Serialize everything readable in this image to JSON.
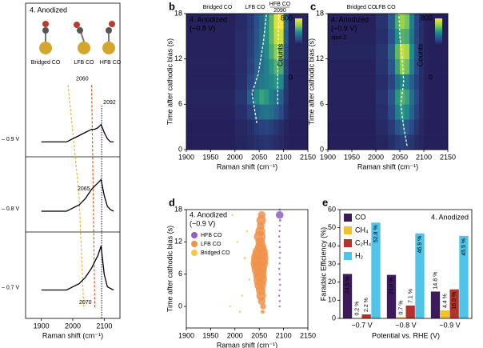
{
  "chart_data": [
    {
      "type": "line",
      "label": "a",
      "title": "4. Anodized",
      "molecules": [
        "Bridged CO",
        "LFB CO",
        "HFB CO"
      ],
      "xlabel": "Raman shift (cm⁻¹)",
      "xlim": [
        1850,
        2150
      ],
      "xticks": [
        1900,
        2000,
        2100
      ],
      "ylim": [
        0,
        10
      ],
      "x": [
        1900,
        1910,
        1920,
        1930,
        1940,
        1950,
        1960,
        1970,
        1980,
        1990,
        2000,
        2010,
        2020,
        2030,
        2040,
        2050,
        2060,
        2070,
        2080,
        2090,
        2100,
        2110,
        2120,
        2130
      ],
      "series": [
        {
          "name": "– 0.9 V",
          "color": "#000000",
          "values": [
            5.6,
            5.6,
            5.6,
            5.6,
            5.6,
            5.6,
            5.6,
            5.6,
            5.6,
            5.65,
            5.7,
            5.75,
            5.8,
            5.85,
            5.9,
            5.95,
            6.0,
            6.0,
            6.05,
            6.15,
            5.9,
            5.7,
            5.6,
            5.6
          ]
        },
        {
          "name": "– 0.8 V",
          "color": "#000000",
          "values": [
            3.4,
            3.4,
            3.4,
            3.4,
            3.4,
            3.4,
            3.4,
            3.4,
            3.4,
            3.45,
            3.5,
            3.55,
            3.6,
            3.7,
            3.8,
            3.95,
            4.1,
            4.2,
            4.3,
            4.4,
            3.9,
            3.55,
            3.45,
            3.4
          ]
        },
        {
          "name": "– 0.7 V",
          "color": "#000000",
          "values": [
            0.9,
            0.9,
            0.9,
            0.9,
            0.9,
            0.9,
            0.9,
            0.9,
            0.9,
            0.95,
            1.0,
            1.05,
            1.1,
            1.2,
            1.3,
            1.45,
            1.6,
            1.8,
            2.0,
            2.3,
            1.4,
            1.0,
            0.95,
            0.9
          ]
        }
      ],
      "guides": [
        {
          "color": "#f5b133",
          "labeled": false,
          "x": [
            1985,
            2020,
            2035
          ],
          "values": [
            7.4,
            3.9,
            0.3
          ]
        },
        {
          "color": "#e0531f",
          "labeled": true,
          "x": [
            2060,
            2065,
            2070
          ],
          "values": [
            7.4,
            3.9,
            0.3
          ]
        }
      ],
      "vlines": [
        {
          "color": "#2b2a8f",
          "x": 2092
        }
      ]
    },
    {
      "type": "heatmap",
      "label": "b",
      "title": "4. Anodized",
      "subtitle": "(−0.8 V)",
      "peaks": [
        "Bridged CO",
        "LFB CO",
        "HFB CO"
      ],
      "annotation": "2090",
      "xlabel": "Raman shift (cm⁻¹)",
      "ylabel": "Time after cathodic bias (s)",
      "xlim": [
        1900,
        2150
      ],
      "xticks": [
        1900,
        1950,
        2000,
        2050,
        2100,
        2150
      ],
      "ylim": [
        0,
        18
      ],
      "yticks": [
        0,
        6,
        12,
        18
      ],
      "colormap": [
        "#241a55",
        "#2a4f8c",
        "#1f8f8a",
        "#8fd14f",
        "#fde725"
      ],
      "colorbar": {
        "label": "Counts",
        "lim": [
          0,
          800
        ],
        "ticks": [
          0,
          800
        ]
      },
      "xbins": [
        1900,
        2000,
        2025,
        2040,
        2050,
        2060,
        2070,
        2080,
        2090,
        2100,
        2110,
        2150
      ],
      "ybins": [
        0,
        2,
        4,
        6,
        8,
        10,
        12,
        14,
        16,
        18
      ],
      "z": [
        [
          20,
          40,
          60,
          80,
          90,
          100,
          90,
          70,
          50,
          30,
          20
        ],
        [
          20,
          50,
          80,
          120,
          150,
          160,
          140,
          110,
          70,
          40,
          20
        ],
        [
          30,
          80,
          150,
          250,
          300,
          320,
          300,
          250,
          180,
          80,
          30
        ],
        [
          40,
          100,
          250,
          380,
          450,
          420,
          350,
          300,
          250,
          100,
          30
        ],
        [
          30,
          80,
          180,
          280,
          330,
          350,
          380,
          420,
          380,
          120,
          30
        ],
        [
          30,
          70,
          150,
          250,
          300,
          350,
          420,
          500,
          480,
          150,
          30
        ],
        [
          30,
          70,
          140,
          230,
          300,
          380,
          480,
          600,
          620,
          200,
          40
        ],
        [
          30,
          70,
          130,
          220,
          300,
          400,
          520,
          700,
          720,
          250,
          40
        ],
        [
          30,
          60,
          120,
          200,
          280,
          380,
          520,
          750,
          800,
          280,
          40
        ]
      ],
      "guides": [
        {
          "color": "#ffffff",
          "x": [
            2045,
            2040,
            2035,
            2048,
            2058,
            2065
          ],
          "values": [
            3.5,
            5.5,
            7.5,
            10,
            14,
            18
          ]
        },
        {
          "color": "#ffffff",
          "x": [
            2088,
            2088,
            2090
          ],
          "values": [
            6,
            12,
            18
          ]
        }
      ]
    },
    {
      "type": "heatmap",
      "label": "c",
      "title": "4. Anodized",
      "subtitle": "(−0.9 V)",
      "note": "spot 2",
      "peaks": [
        "Bridged CO",
        "LFB CO"
      ],
      "xlabel": "Raman shift (cm⁻¹)",
      "ylabel": "Time after cathodic bias (s)",
      "xlim": [
        1900,
        2150
      ],
      "xticks": [
        1900,
        1950,
        2000,
        2050,
        2100,
        2150
      ],
      "ylim": [
        0,
        18
      ],
      "yticks": [
        0,
        6,
        12,
        18
      ],
      "colormap": [
        "#241a55",
        "#2a4f8c",
        "#1f8f8a",
        "#8fd14f",
        "#fde725"
      ],
      "colorbar": {
        "label": "Counts",
        "lim": [
          0,
          800
        ],
        "ticks": [
          0,
          800
        ]
      },
      "xbins": [
        1900,
        2000,
        2025,
        2040,
        2050,
        2060,
        2070,
        2080,
        2090,
        2100,
        2110,
        2150
      ],
      "ybins": [
        0,
        2,
        4,
        6,
        8,
        10,
        12,
        14,
        16,
        18
      ],
      "z": [
        [
          20,
          40,
          80,
          120,
          140,
          130,
          100,
          60,
          40,
          20,
          20
        ],
        [
          20,
          60,
          120,
          220,
          260,
          240,
          180,
          100,
          50,
          20,
          20
        ],
        [
          30,
          80,
          180,
          350,
          420,
          380,
          260,
          150,
          70,
          30,
          20
        ],
        [
          30,
          90,
          220,
          420,
          500,
          450,
          300,
          180,
          80,
          30,
          20
        ],
        [
          30,
          70,
          160,
          300,
          380,
          350,
          250,
          150,
          70,
          30,
          20
        ],
        [
          30,
          90,
          220,
          450,
          600,
          550,
          350,
          180,
          80,
          30,
          20
        ],
        [
          40,
          100,
          260,
          520,
          700,
          650,
          400,
          200,
          80,
          30,
          20
        ],
        [
          30,
          80,
          200,
          400,
          500,
          480,
          320,
          160,
          70,
          30,
          20
        ],
        [
          30,
          90,
          240,
          480,
          620,
          560,
          350,
          170,
          70,
          30,
          20
        ]
      ],
      "guides": [
        {
          "color": "#ffffff",
          "x": [
            2065,
            2058,
            2052,
            2058,
            2055,
            2050,
            2048
          ],
          "values": [
            0.5,
            3,
            6,
            9,
            12,
            15,
            18
          ]
        }
      ]
    },
    {
      "type": "bubble",
      "label": "d",
      "title": "4. Anodized",
      "subtitle": "(−0.9 V)",
      "legend": "upper left",
      "xlabel": "Raman shift (cm⁻¹)",
      "ylabel": "Time after cathodic bias (s)",
      "xlim": [
        1900,
        2150
      ],
      "xticks": [
        1900,
        1950,
        2000,
        2050,
        2100,
        2150
      ],
      "ylim": [
        -4,
        18
      ],
      "yticks": [
        0,
        6,
        12,
        18
      ],
      "series": [
        {
          "name": "HFB CO",
          "color": "#8e5fc9",
          "x": [
            2092,
            2092,
            2091,
            2092,
            2093,
            2092,
            2092,
            2091,
            2092,
            2092,
            2093,
            2092,
            2092,
            2091,
            2092,
            2092,
            2093,
            2092,
            2092
          ],
          "values": [
            0,
            1,
            2,
            3,
            4,
            5,
            6,
            7,
            8,
            9,
            10,
            11,
            12,
            13,
            14,
            15,
            16,
            17,
            18
          ],
          "sizes": [
            1,
            1,
            1,
            1,
            1,
            1,
            1,
            1,
            1,
            1,
            1,
            1,
            1,
            1,
            1,
            1,
            1.2,
            4,
            1
          ]
        },
        {
          "name": "LFB CO",
          "color": "#f0924a",
          "x": [
            2057,
            2058,
            2055,
            2054,
            2053,
            2052,
            2052,
            2051,
            2050,
            2050,
            2051,
            2052,
            2053,
            2052,
            2051,
            2052,
            2053,
            2054,
            2055
          ],
          "values": [
            -1,
            0,
            1,
            2,
            3,
            4,
            5,
            6,
            7,
            8,
            9,
            10,
            11,
            12,
            13,
            14,
            15,
            16,
            17
          ],
          "sizes": [
            2,
            3,
            4,
            5,
            5,
            6,
            7,
            7,
            8,
            9,
            9,
            8,
            6,
            5,
            6,
            5,
            4,
            5,
            4
          ]
        },
        {
          "name": "Bridged CO",
          "color": "#f7c64a",
          "x": [
            1995,
            2005,
            2020,
            2030,
            2015,
            1990,
            2025,
            2010
          ],
          "values": [
            17,
            12,
            9,
            5,
            2,
            0,
            14,
            -1
          ],
          "sizes": [
            1,
            1,
            1.2,
            1,
            1,
            1,
            1,
            1
          ]
        }
      ]
    },
    {
      "type": "bar",
      "label": "e",
      "title": "4. Anodized",
      "legend": "upper left",
      "xlabel": "Potential vs. RHE (V)",
      "ylabel": "Faradaic Efficiency (%)",
      "categories": [
        "−0.7 V",
        "−0.8 V",
        "−0.9 V"
      ],
      "ylim": [
        0,
        60
      ],
      "yticks": [
        0,
        10,
        20,
        30,
        40,
        50,
        60
      ],
      "series": [
        {
          "name": "CO",
          "color": "#3d1a5c",
          "values": [
            24.5,
            24.0,
            14.8
          ],
          "value_labels": [
            "24.5 %",
            "24.0 %",
            "14.8 %"
          ]
        },
        {
          "name": "CH₄",
          "color": "#f2c12e",
          "values": [
            0.2,
            0.7,
            4.4
          ],
          "value_labels": [
            "0.2 %",
            "0.7 %",
            "4.4 %"
          ]
        },
        {
          "name": "C₂H₄",
          "color": "#b5322a",
          "values": [
            2.2,
            7.1,
            16.0
          ],
          "value_labels": [
            "2.2 %",
            "7.1 %",
            "16.0 %"
          ]
        },
        {
          "name": "H₂",
          "color": "#4fc3e8",
          "values": [
            52.8,
            46.9,
            45.5
          ],
          "value_labels": [
            "52.8 %",
            "46.9 %",
            "45.5 %"
          ]
        }
      ]
    }
  ]
}
